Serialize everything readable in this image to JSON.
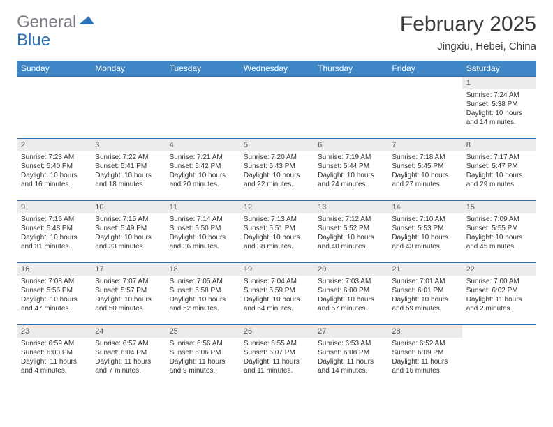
{
  "brand": {
    "part1": "General",
    "part2": "Blue",
    "tri_color": "#2f6fb3"
  },
  "title": "February 2025",
  "location": "Jingxiu, Hebei, China",
  "colors": {
    "header_bg": "#3f86c6",
    "header_fg": "#ffffff",
    "row_border": "#2f6fb3",
    "daynum_bg": "#ececec",
    "text": "#333333"
  },
  "day_headers": [
    "Sunday",
    "Monday",
    "Tuesday",
    "Wednesday",
    "Thursday",
    "Friday",
    "Saturday"
  ],
  "weeks": [
    [
      null,
      null,
      null,
      null,
      null,
      null,
      {
        "n": "1",
        "sr": "7:24 AM",
        "ss": "5:38 PM",
        "dl": "10 hours and 14 minutes."
      }
    ],
    [
      {
        "n": "2",
        "sr": "7:23 AM",
        "ss": "5:40 PM",
        "dl": "10 hours and 16 minutes."
      },
      {
        "n": "3",
        "sr": "7:22 AM",
        "ss": "5:41 PM",
        "dl": "10 hours and 18 minutes."
      },
      {
        "n": "4",
        "sr": "7:21 AM",
        "ss": "5:42 PM",
        "dl": "10 hours and 20 minutes."
      },
      {
        "n": "5",
        "sr": "7:20 AM",
        "ss": "5:43 PM",
        "dl": "10 hours and 22 minutes."
      },
      {
        "n": "6",
        "sr": "7:19 AM",
        "ss": "5:44 PM",
        "dl": "10 hours and 24 minutes."
      },
      {
        "n": "7",
        "sr": "7:18 AM",
        "ss": "5:45 PM",
        "dl": "10 hours and 27 minutes."
      },
      {
        "n": "8",
        "sr": "7:17 AM",
        "ss": "5:47 PM",
        "dl": "10 hours and 29 minutes."
      }
    ],
    [
      {
        "n": "9",
        "sr": "7:16 AM",
        "ss": "5:48 PM",
        "dl": "10 hours and 31 minutes."
      },
      {
        "n": "10",
        "sr": "7:15 AM",
        "ss": "5:49 PM",
        "dl": "10 hours and 33 minutes."
      },
      {
        "n": "11",
        "sr": "7:14 AM",
        "ss": "5:50 PM",
        "dl": "10 hours and 36 minutes."
      },
      {
        "n": "12",
        "sr": "7:13 AM",
        "ss": "5:51 PM",
        "dl": "10 hours and 38 minutes."
      },
      {
        "n": "13",
        "sr": "7:12 AM",
        "ss": "5:52 PM",
        "dl": "10 hours and 40 minutes."
      },
      {
        "n": "14",
        "sr": "7:10 AM",
        "ss": "5:53 PM",
        "dl": "10 hours and 43 minutes."
      },
      {
        "n": "15",
        "sr": "7:09 AM",
        "ss": "5:55 PM",
        "dl": "10 hours and 45 minutes."
      }
    ],
    [
      {
        "n": "16",
        "sr": "7:08 AM",
        "ss": "5:56 PM",
        "dl": "10 hours and 47 minutes."
      },
      {
        "n": "17",
        "sr": "7:07 AM",
        "ss": "5:57 PM",
        "dl": "10 hours and 50 minutes."
      },
      {
        "n": "18",
        "sr": "7:05 AM",
        "ss": "5:58 PM",
        "dl": "10 hours and 52 minutes."
      },
      {
        "n": "19",
        "sr": "7:04 AM",
        "ss": "5:59 PM",
        "dl": "10 hours and 54 minutes."
      },
      {
        "n": "20",
        "sr": "7:03 AM",
        "ss": "6:00 PM",
        "dl": "10 hours and 57 minutes."
      },
      {
        "n": "21",
        "sr": "7:01 AM",
        "ss": "6:01 PM",
        "dl": "10 hours and 59 minutes."
      },
      {
        "n": "22",
        "sr": "7:00 AM",
        "ss": "6:02 PM",
        "dl": "11 hours and 2 minutes."
      }
    ],
    [
      {
        "n": "23",
        "sr": "6:59 AM",
        "ss": "6:03 PM",
        "dl": "11 hours and 4 minutes."
      },
      {
        "n": "24",
        "sr": "6:57 AM",
        "ss": "6:04 PM",
        "dl": "11 hours and 7 minutes."
      },
      {
        "n": "25",
        "sr": "6:56 AM",
        "ss": "6:06 PM",
        "dl": "11 hours and 9 minutes."
      },
      {
        "n": "26",
        "sr": "6:55 AM",
        "ss": "6:07 PM",
        "dl": "11 hours and 11 minutes."
      },
      {
        "n": "27",
        "sr": "6:53 AM",
        "ss": "6:08 PM",
        "dl": "11 hours and 14 minutes."
      },
      {
        "n": "28",
        "sr": "6:52 AM",
        "ss": "6:09 PM",
        "dl": "11 hours and 16 minutes."
      },
      null
    ]
  ],
  "labels": {
    "sunrise": "Sunrise:",
    "sunset": "Sunset:",
    "daylight": "Daylight:"
  }
}
